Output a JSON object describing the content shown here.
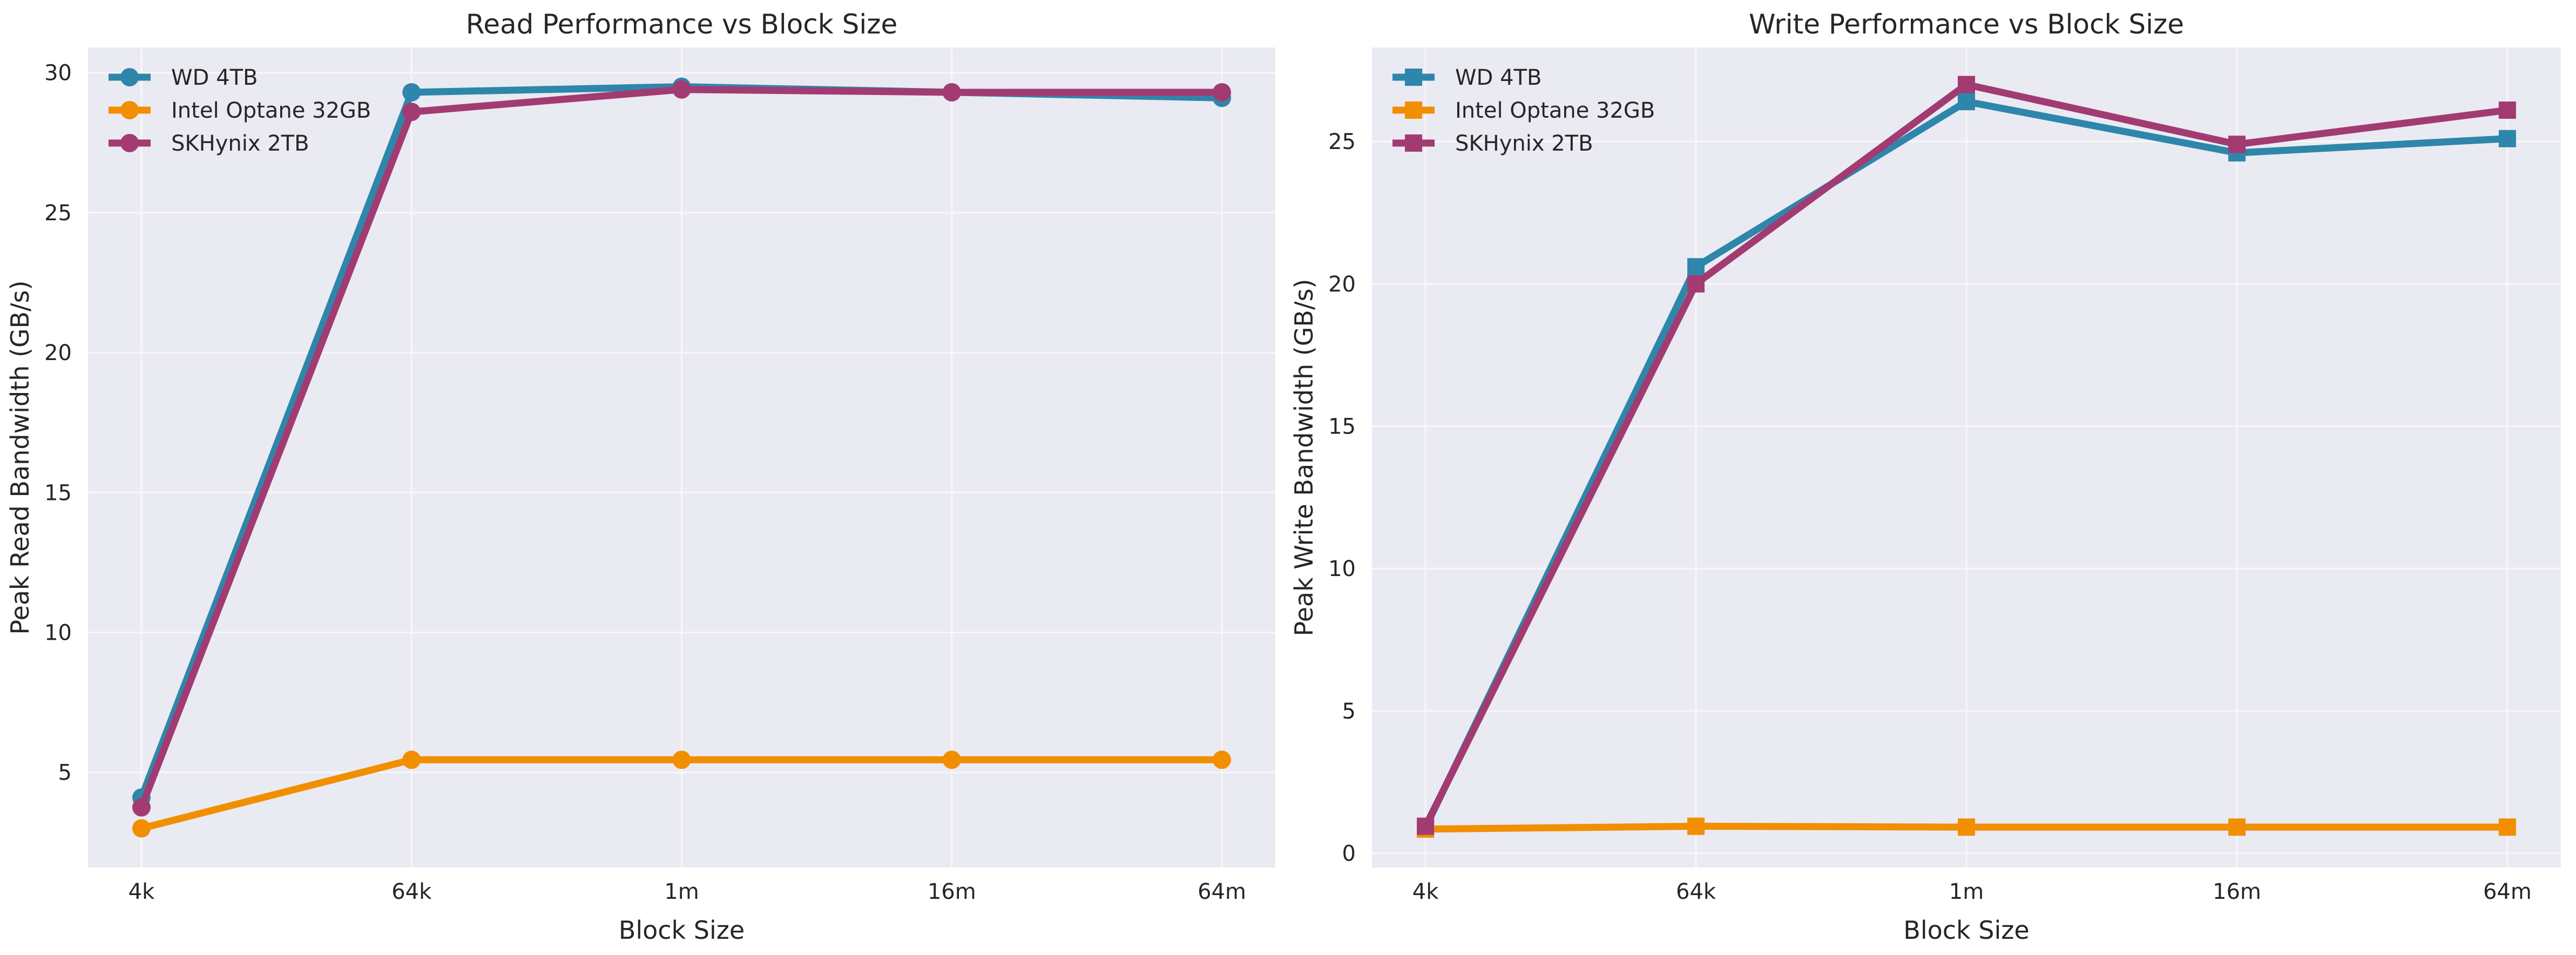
{
  "colors": {
    "background": "#eaeaf2",
    "grid": "#f7f7fa",
    "series": [
      "#2e86ab",
      "#f18f01",
      "#a23b72"
    ]
  },
  "chart_data": [
    {
      "type": "line",
      "title": "Read Performance vs Block Size",
      "xlabel": "Block Size",
      "ylabel": "Peak Read Bandwidth (GB/s)",
      "categories": [
        "4k",
        "64k",
        "1m",
        "16m",
        "64m"
      ],
      "ylim": [
        1.6,
        30.9
      ],
      "yticks": [
        "5",
        "10",
        "15",
        "20",
        "25",
        "30"
      ],
      "marker": "circle",
      "grid": true,
      "legend": "upper-left",
      "series": [
        {
          "name": "WD 4TB",
          "color": "#2e86ab",
          "values": [
            4.1,
            29.3,
            29.5,
            29.3,
            29.1
          ]
        },
        {
          "name": "Intel Optane 32GB",
          "color": "#f18f01",
          "values": [
            3.0,
            5.45,
            5.45,
            5.45,
            5.45
          ]
        },
        {
          "name": "SKHynix 2TB",
          "color": "#a23b72",
          "values": [
            3.75,
            28.6,
            29.4,
            29.3,
            29.3
          ]
        }
      ]
    },
    {
      "type": "line",
      "title": "Write Performance vs Block Size",
      "xlabel": "Block Size",
      "ylabel": "Peak Write Bandwidth (GB/s)",
      "categories": [
        "4k",
        "64k",
        "1m",
        "16m",
        "64m"
      ],
      "ylim": [
        -0.5,
        28.3
      ],
      "yticks": [
        "0",
        "5",
        "10",
        "15",
        "20",
        "25"
      ],
      "marker": "square",
      "grid": true,
      "legend": "upper-left",
      "series": [
        {
          "name": "WD 4TB",
          "color": "#2e86ab",
          "values": [
            0.9,
            20.6,
            26.4,
            24.6,
            25.1
          ]
        },
        {
          "name": "Intel Optane 32GB",
          "color": "#f18f01",
          "values": [
            0.85,
            0.95,
            0.92,
            0.92,
            0.92
          ]
        },
        {
          "name": "SKHynix 2TB",
          "color": "#a23b72",
          "values": [
            0.95,
            20.0,
            27.0,
            24.9,
            26.1
          ]
        }
      ]
    }
  ]
}
